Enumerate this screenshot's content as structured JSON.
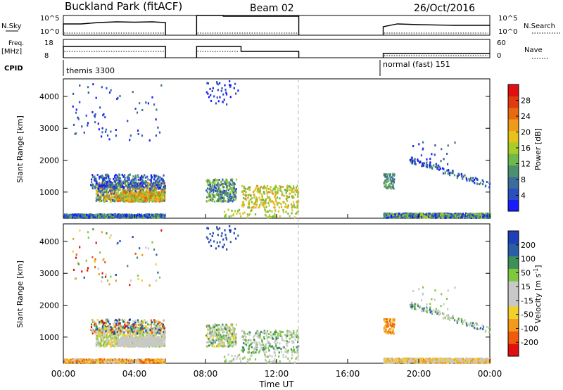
{
  "header": {
    "station": "Buckland Park (fitACF)",
    "beam": "Beam 02",
    "date": "26/Oct/2016"
  },
  "nsky_panel": {
    "left_label": "N.Sky",
    "right_label": "N.Search",
    "left_ticks": [
      "10^5",
      "10^0"
    ],
    "right_ticks": [
      "10^5",
      "10^0"
    ]
  },
  "freq_panel": {
    "left_label_line1": "Freq.",
    "left_label_line2": "[MHz]",
    "right_label": "Nave",
    "left_ticks": [
      "18",
      "8"
    ],
    "right_ticks": [
      "60",
      "0"
    ]
  },
  "cpid_panel": {
    "label": "CPID",
    "segments": [
      {
        "text": "themis 3300",
        "start_hour": 0.0
      },
      {
        "text": "normal (fast) 151",
        "start_hour": 18.0
      }
    ]
  },
  "chart_data": [
    {
      "type": "scatter",
      "name": "power",
      "ylabel": "Slant Range [km]",
      "ylim": [
        180,
        4550
      ],
      "xlim_hours": [
        0,
        24
      ],
      "yticks": [
        1000,
        2000,
        3000,
        4000
      ],
      "colorbar": {
        "label": "Power [dB]",
        "ticks": [
          "4",
          "8",
          "12",
          "16",
          "20",
          "24",
          "28"
        ],
        "range": [
          0,
          30
        ]
      }
    },
    {
      "type": "scatter",
      "name": "velocity",
      "ylabel": "Slant Range [km]",
      "ylim": [
        180,
        4550
      ],
      "xlim_hours": [
        0,
        24
      ],
      "yticks": [
        1000,
        2000,
        3000,
        4000
      ],
      "colorbar": {
        "label": "Velocity [m s",
        "label_sup": "-1",
        "label_end": "]",
        "ticks": [
          "-200",
          "-100",
          "-50",
          "-15",
          "15",
          "50",
          "100",
          "200"
        ]
      }
    }
  ],
  "time_axis": {
    "label": "Time UT",
    "ticks": [
      "00:00",
      "04:00",
      "08:00",
      "12:00",
      "16:00",
      "20:00",
      "00:00"
    ],
    "tick_hours": [
      0,
      4,
      8,
      12,
      16,
      20,
      24
    ]
  },
  "data_gaps": [
    [
      5.75,
      7.5
    ],
    [
      13.25,
      18.0
    ]
  ],
  "colors": {
    "power_scale": [
      "#1a1aff",
      "#2a4fbf",
      "#3a6e9a",
      "#4d9070",
      "#6fb84a",
      "#a8cc2a",
      "#e6c21a",
      "#f09a1a",
      "#e86a10",
      "#e03a10",
      "#e01010"
    ],
    "velocity_scale": [
      "#e01010",
      "#f05a0a",
      "#f39a1a",
      "#f2d02a",
      "#c8c8c8",
      "#c8c8c8",
      "#7ec840",
      "#3f8f5a",
      "#2a5fa8",
      "#1f3fb8"
    ]
  }
}
